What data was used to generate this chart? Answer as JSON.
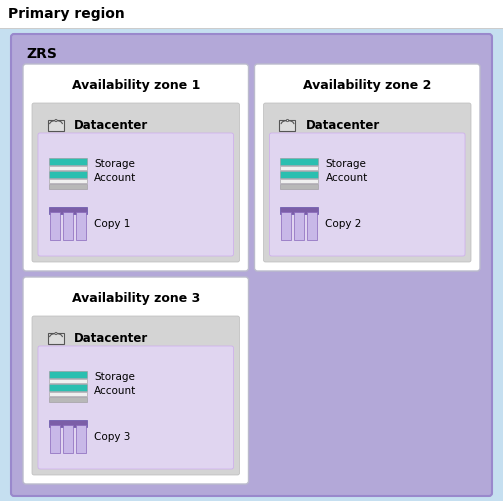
{
  "title": "Primary region",
  "zrs_label": "ZRS",
  "bg_top_white": "#ffffff",
  "bg_outer_blue": "#c5dff0",
  "bg_zrs": "#b3a8d8",
  "bg_zone_white": "#ffffff",
  "bg_datacenter": "#d4d4d4",
  "bg_storage_box": "#e0d5f0",
  "storage_teal": "#2abfb0",
  "storage_white": "#f0f0f0",
  "storage_grey": "#b8b8b8",
  "copy_purple": "#7b5ea7",
  "copy_light": "#c8b8e8",
  "zones": [
    {
      "label": "Availability zone 1",
      "copy": "Copy 1",
      "col": 0,
      "row": 0
    },
    {
      "label": "Availability zone 2",
      "copy": "Copy 2",
      "col": 1,
      "row": 0
    },
    {
      "label": "Availability zone 3",
      "copy": "Copy 3",
      "col": 0,
      "row": 1
    }
  ]
}
